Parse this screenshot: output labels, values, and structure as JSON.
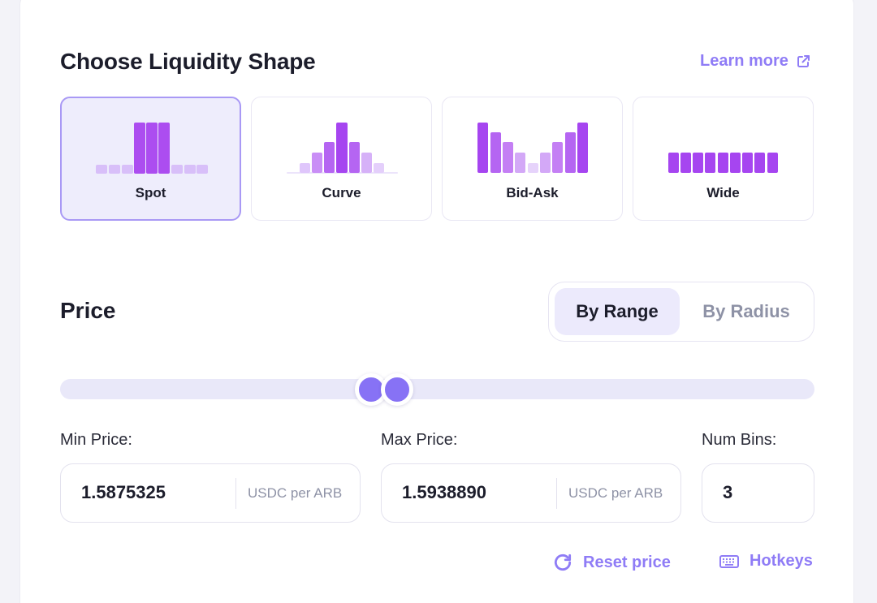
{
  "liquidity": {
    "title": "Choose Liquidity Shape",
    "learn_more": "Learn more",
    "shapes": [
      {
        "label": "Spot",
        "selected": true
      },
      {
        "label": "Curve",
        "selected": false
      },
      {
        "label": "Bid-Ask",
        "selected": false
      },
      {
        "label": "Wide",
        "selected": false
      }
    ]
  },
  "price": {
    "title": "Price",
    "modes": [
      "By Range",
      "By Radius"
    ],
    "active_mode": "By Range",
    "min_label": "Min Price:",
    "max_label": "Max Price:",
    "bins_label": "Num Bins:",
    "min_value": "1.5875325",
    "max_value": "1.5938890",
    "unit": "USDC per ARB",
    "num_bins": "3",
    "reset_label": "Reset price",
    "hotkeys_label": "Hotkeys"
  },
  "colors": {
    "accent": "#8f7cf6",
    "bar_dark": "#a645f0",
    "bar_light": "#dcc2fa",
    "handle": "#8772f5"
  }
}
